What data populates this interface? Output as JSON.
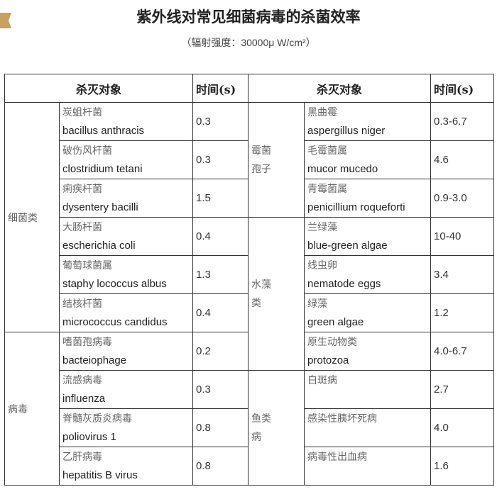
{
  "title": "紫外线对常见细菌病毒的杀菌效率",
  "subtitle": "（辐射强度：30000μ W/cm²）",
  "headers": [
    "杀灭对象",
    "时间(s)",
    "杀灭对象",
    "时间(s)"
  ],
  "left_groups": [
    {
      "label": "细菌类"
    },
    {
      "label": "病毒"
    }
  ],
  "right_groups": [
    {
      "label": "霉菌孢子"
    },
    {
      "label": "水藻类"
    },
    {
      "label": "鱼类病"
    }
  ],
  "rows": [
    {
      "lzh": "炭蛆杆菌",
      "len": "bacillus anthracis",
      "lt": "0.3",
      "rzh": "黑曲霉",
      "ren": "aspergillus niger",
      "rt": "0.3-6.7"
    },
    {
      "lzh": "破伤风杆菌",
      "len": "clostridium tetani",
      "lt": "0.3",
      "rzh": "毛霉菌属",
      "ren": "mucor mucedo",
      "rt": "4.6"
    },
    {
      "lzh": "痢疾杆菌",
      "len": "dysentery bacilli",
      "lt": "1.5",
      "rzh": "青霉菌属",
      "ren": "penicillium roqueforti",
      "rt": "0.9-3.0"
    },
    {
      "lzh": "大肠杆菌",
      "len": "escherichia coli",
      "lt": "0.4",
      "rzh": "兰绿藻",
      "ren": "blue-green algae",
      "rt": "10-40"
    },
    {
      "lzh": "葡萄球菌属",
      "len": "staphy lococcus albus",
      "lt": "1.3",
      "rzh": "线虫卵",
      "ren": "nematode eggs",
      "rt": "3.4"
    },
    {
      "lzh": "结核杆菌",
      "len": "micrococcus candidus",
      "lt": "0.4",
      "rzh": "绿藻",
      "ren": "green algae",
      "rt": "1.2"
    },
    {
      "lzh": "嗜菌孢病毒",
      "len": "bacteiophage",
      "lt": "0.2",
      "rzh": "原生动物类",
      "ren": "protozoa",
      "rt": "4.0-6.7"
    },
    {
      "lzh": "流感病毒",
      "len": "influenza",
      "lt": "0.3",
      "rzh": "白斑病",
      "ren": "",
      "rt": "2.7"
    },
    {
      "lzh": "脊髓灰质炎病毒",
      "len": "poliovirus 1",
      "lt": "0.8",
      "rzh": "感染性胰坏死病",
      "ren": "",
      "rt": "4.0"
    },
    {
      "lzh": "乙肝病毒",
      "len": "hepatitis B virus",
      "lt": "0.8",
      "rzh": "病毒性出血病",
      "ren": "",
      "rt": "1.6"
    }
  ],
  "colors": {
    "tag": "#c8a060"
  }
}
